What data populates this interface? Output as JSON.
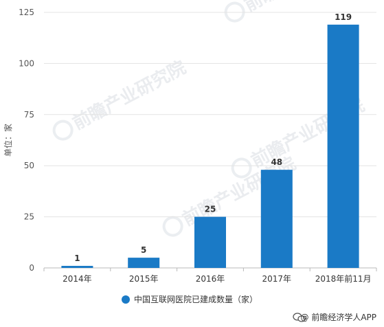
{
  "chart_data": {
    "type": "bar",
    "categories": [
      "2014年",
      "2015年",
      "2016年",
      "2017年",
      "2018年前11月"
    ],
    "series": [
      {
        "name": "中国互联网医院已建成数量（家）",
        "values": [
          1,
          5,
          25,
          48,
          119
        ],
        "color": "#1a7ac6"
      }
    ],
    "ylabel": "单位：家",
    "ylim": [
      0,
      125
    ],
    "yticks": [
      0,
      25,
      50,
      75,
      100,
      125
    ],
    "grid": true,
    "legend_position": "bottom-center",
    "data_labels": true
  },
  "credit": {
    "icon": "wechat-icon",
    "text": "@ 前瞻经济学人APP"
  },
  "watermark": {
    "text": "前瞻产业研究院"
  }
}
